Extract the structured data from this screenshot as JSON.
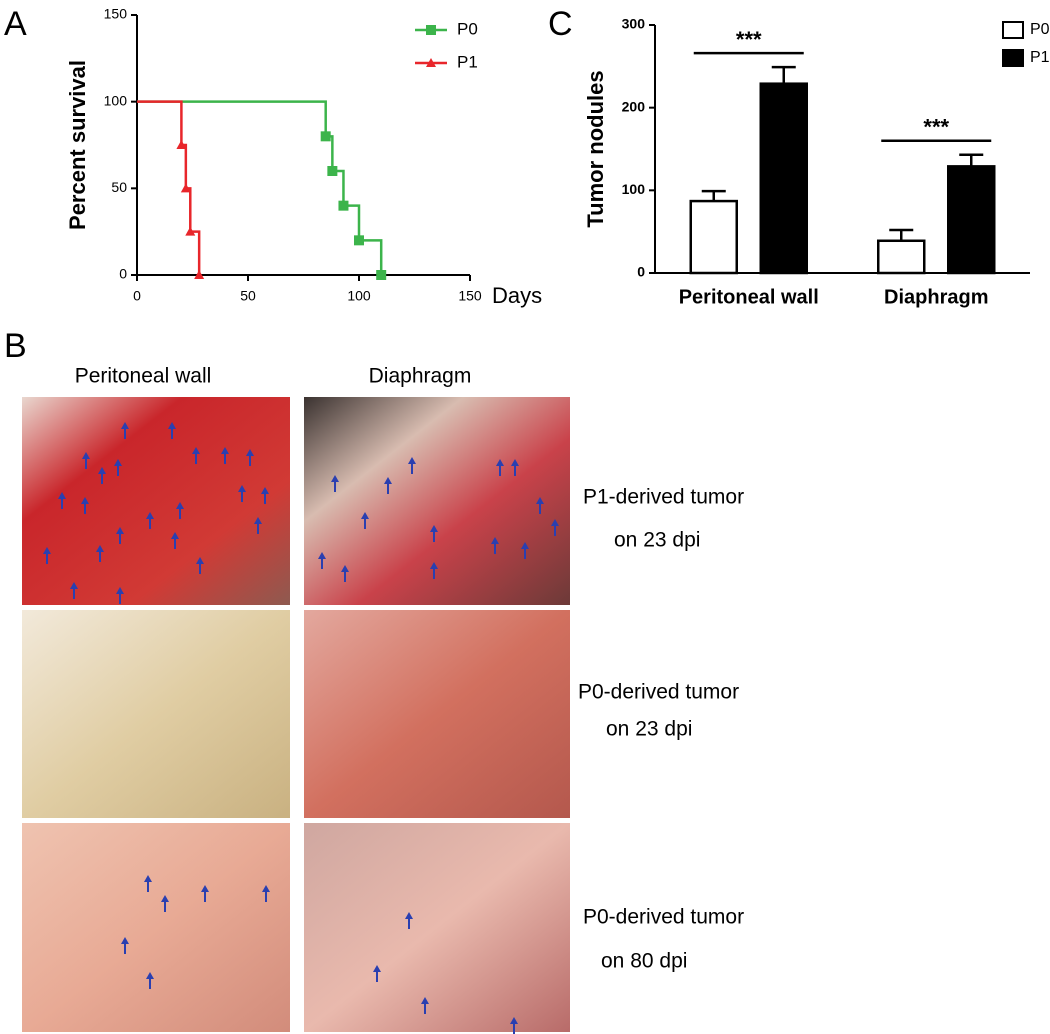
{
  "panel_labels": [
    "A",
    "B",
    "C"
  ],
  "chart_data": [
    {
      "type": "line",
      "step": true,
      "ylabel": "Percent survival",
      "xlabel": "Days",
      "xlim": [
        0,
        150
      ],
      "xticks": [
        0,
        50,
        100,
        150
      ],
      "ylim": [
        0,
        150
      ],
      "yticks": [
        0,
        50,
        100,
        150
      ],
      "legend": "upper right",
      "series": [
        {
          "name": "P0",
          "color": "#3cb44b",
          "marker": "square",
          "x": [
            0,
            85,
            88,
            93,
            100,
            110
          ],
          "values": [
            100,
            80,
            60,
            40,
            20,
            0
          ]
        },
        {
          "name": "P1",
          "color": "#e8262b",
          "marker": "triangle",
          "x": [
            0,
            20,
            22,
            24,
            28
          ],
          "values": [
            100,
            75,
            50,
            25,
            0
          ]
        }
      ]
    },
    {
      "type": "bar",
      "ylabel": "Tumor nodules",
      "categories": [
        "Peritoneal wall",
        "Diaphragm"
      ],
      "ylim": [
        0,
        300
      ],
      "yticks": [
        0,
        100,
        200,
        300
      ],
      "legend": "upper right",
      "annotations": [
        "***",
        "***"
      ],
      "series": [
        {
          "name": "P0",
          "color": "#ffffff",
          "values": [
            87,
            39
          ],
          "errors": [
            12,
            13
          ]
        },
        {
          "name": "P1",
          "color": "#000000",
          "values": [
            229,
            129
          ],
          "errors": [
            20,
            14
          ]
        }
      ]
    }
  ],
  "panel_b": {
    "column_headers": [
      "Peritoneal wall",
      "Diaphragm"
    ],
    "row_labels": [
      [
        "P1-derived tumor",
        "on 23 dpi"
      ],
      [
        "P0-derived tumor",
        "on 23 dpi"
      ],
      [
        "P0-derived tumor",
        "on 80 dpi"
      ]
    ]
  }
}
